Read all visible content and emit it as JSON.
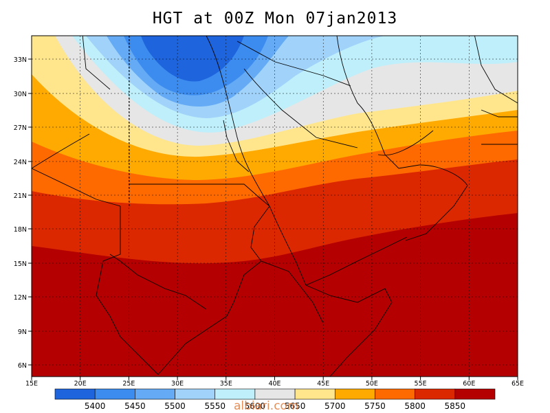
{
  "title": "HGT at 00Z Mon 07jan2013",
  "watermark": "albiari.com",
  "map": {
    "lon_ticks": [
      "15E",
      "20E",
      "25E",
      "30E",
      "35E",
      "40E",
      "45E",
      "50E",
      "55E",
      "60E",
      "65E"
    ],
    "lat_ticks": [
      "33N",
      "30N",
      "27N",
      "24N",
      "21N",
      "18N",
      "15N",
      "12N",
      "9N",
      "6N"
    ]
  },
  "colorbar": {
    "labels": [
      "5400",
      "5450",
      "5500",
      "5550",
      "5600",
      "5650",
      "5700",
      "5750",
      "5800",
      "5850"
    ],
    "colors": [
      "#1e64dc",
      "#3c8cf0",
      "#64aaf5",
      "#a0d2fa",
      "#bfeffa",
      "#e6e6e6",
      "#ffe68c",
      "#ffaa00",
      "#ff6a00",
      "#dc2800",
      "#b40000"
    ]
  }
}
